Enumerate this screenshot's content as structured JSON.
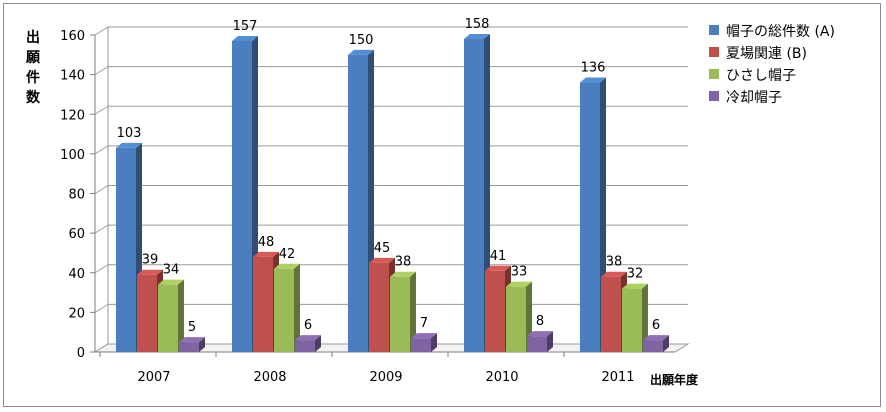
{
  "chart_data": {
    "type": "bar",
    "ylabel": "出願件数",
    "xlabel": "出願年度",
    "ylim": [
      0,
      160
    ],
    "yticks": [
      0,
      20,
      40,
      60,
      80,
      100,
      120,
      140,
      160
    ],
    "grid": true,
    "legend_position": "right",
    "categories": [
      "2007",
      "2008",
      "2009",
      "2010",
      "2011"
    ],
    "series": [
      {
        "name": "帽子の総件数 (A)",
        "color": "#4a7ebf",
        "values": [
          103,
          157,
          150,
          158,
          136
        ]
      },
      {
        "name": "夏場関連 (B)",
        "color": "#c0504d",
        "values": [
          39,
          48,
          45,
          41,
          38
        ]
      },
      {
        "name": "ひさし帽子",
        "color": "#9bbb59",
        "values": [
          34,
          42,
          38,
          33,
          32
        ]
      },
      {
        "name": "冷却帽子",
        "color": "#8064a2",
        "values": [
          5,
          6,
          7,
          8,
          6
        ]
      }
    ]
  }
}
